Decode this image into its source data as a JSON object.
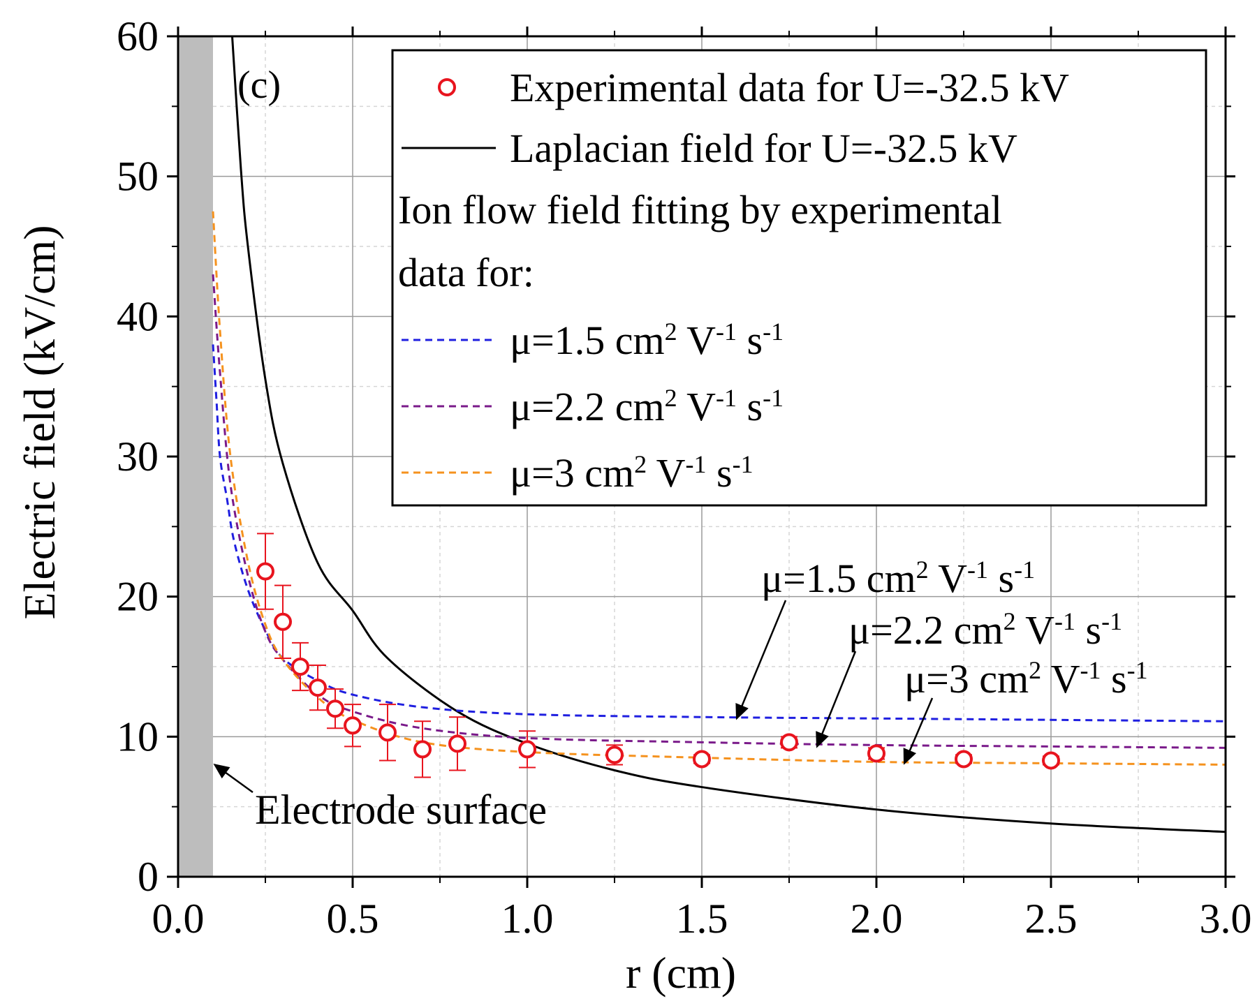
{
  "chart_data": {
    "type": "line",
    "panel_label": "(c)",
    "xlabel": "r (cm)",
    "ylabel": "Electric field (kV/cm)",
    "xlim": [
      0.0,
      3.0
    ],
    "ylim": [
      0,
      60
    ],
    "x_ticks": [
      "0.0",
      "0.5",
      "1.0",
      "1.5",
      "2.0",
      "2.5",
      "3.0"
    ],
    "y_ticks": [
      "0",
      "10",
      "20",
      "30",
      "40",
      "50",
      "60"
    ],
    "grid": true,
    "electrode_surface": {
      "x_range": [
        0.0,
        0.1
      ],
      "color": "#bdbdbd",
      "label": "Electrode surface"
    },
    "legend": {
      "position": "top-right",
      "entries": [
        {
          "key": "experimental",
          "label": "Experimental data for U=-32.5 kV"
        },
        {
          "key": "laplacian",
          "label": "Laplacian field for U=-32.5 kV"
        }
      ],
      "header_lines": [
        "Ion flow field fitting by experimental",
        "data for:"
      ],
      "mu_entries": [
        {
          "key": "mu15",
          "prefix": "μ=1.5 cm",
          "sup2": "2",
          "v": " V",
          "supv": "-1",
          "s": " s",
          "sups": "-1"
        },
        {
          "key": "mu22",
          "prefix": "μ=2.2 cm",
          "sup2": "2",
          "v": " V",
          "supv": "-1",
          "s": " s",
          "sups": "-1"
        },
        {
          "key": "mu3",
          "prefix": "μ=3 cm",
          "sup2": "2",
          "v": " V",
          "supv": "-1",
          "s": " s",
          "sups": "-1"
        }
      ]
    },
    "annotations": [
      {
        "key": "mu15",
        "prefix": "μ=1.5 cm",
        "sup2": "2",
        "v": " V",
        "supv": "-1",
        "s": " s",
        "sups": "-1",
        "target": [
          1.6,
          11.3
        ]
      },
      {
        "key": "mu22",
        "prefix": "μ=2.2 cm",
        "sup2": "2",
        "v": " V",
        "supv": "-1",
        "s": " s",
        "sups": "-1",
        "target": [
          1.83,
          9.3
        ]
      },
      {
        "key": "mu3",
        "prefix": "μ=3 cm",
        "sup2": "2",
        "v": " V",
        "supv": "-1",
        "s": " s",
        "sups": "-1",
        "target": [
          2.08,
          8.1
        ]
      }
    ],
    "series": [
      {
        "name": "Experimental data for U=-32.5 kV",
        "kind": "scatter",
        "color": "#e8141e",
        "x": [
          0.25,
          0.3,
          0.35,
          0.4,
          0.45,
          0.5,
          0.6,
          0.7,
          0.8,
          1.0,
          1.25,
          1.5,
          1.75,
          2.0,
          2.25,
          2.5
        ],
        "y": [
          21.8,
          18.2,
          15.0,
          13.5,
          12.0,
          10.8,
          10.3,
          9.1,
          9.5,
          9.1,
          8.7,
          8.4,
          9.6,
          8.8,
          8.4,
          8.3
        ],
        "err": [
          2.7,
          2.6,
          1.7,
          1.6,
          1.4,
          1.5,
          2.0,
          2.0,
          1.9,
          1.3,
          0.7,
          0.3,
          0.4,
          0.4,
          0.3,
          0.3
        ]
      },
      {
        "name": "Laplacian field for U=-32.5 kV",
        "kind": "line",
        "color": "#000000",
        "x": [
          0.155,
          0.18,
          0.2,
          0.25,
          0.3,
          0.4,
          0.5,
          0.6,
          0.8,
          1.0,
          1.25,
          1.5,
          2.0,
          2.5,
          3.0
        ],
        "y": [
          60.0,
          50.5,
          45.0,
          35.5,
          29.5,
          22.4,
          19.0,
          15.6,
          11.8,
          9.5,
          7.6,
          6.4,
          4.8,
          3.8,
          3.2
        ]
      },
      {
        "name": "μ=1.5 cm2 V-1 s-1",
        "kind": "dashed",
        "color": "#1f1fe0",
        "x": [
          0.1,
          0.11,
          0.12,
          0.14,
          0.16,
          0.2,
          0.25,
          0.3,
          0.4,
          0.5,
          0.7,
          1.0,
          1.5,
          2.0,
          2.5,
          3.0
        ],
        "y": [
          38.0,
          34.0,
          30.0,
          27.0,
          24.0,
          20.5,
          17.6,
          15.6,
          14.0,
          13.0,
          12.1,
          11.6,
          11.4,
          11.3,
          11.2,
          11.1
        ]
      },
      {
        "name": "μ=2.2 cm2 V-1 s-1",
        "kind": "dashed",
        "color": "#7a1a8a",
        "x": [
          0.1,
          0.12,
          0.15,
          0.2,
          0.25,
          0.3,
          0.4,
          0.5,
          0.7,
          1.0,
          1.5,
          2.0,
          2.5,
          3.0
        ],
        "y": [
          43.0,
          36.0,
          28.0,
          21.5,
          17.5,
          15.5,
          13.0,
          11.8,
          10.6,
          9.9,
          9.6,
          9.4,
          9.3,
          9.2
        ]
      },
      {
        "name": "μ=3 cm2 V-1 s-1",
        "kind": "dashed",
        "color": "#f5921e",
        "x": [
          0.1,
          0.12,
          0.15,
          0.2,
          0.25,
          0.3,
          0.4,
          0.5,
          0.7,
          1.0,
          1.5,
          2.0,
          2.5,
          3.0
        ],
        "y": [
          47.5,
          39.0,
          30.0,
          22.5,
          18.0,
          15.5,
          12.8,
          11.2,
          9.6,
          8.9,
          8.5,
          8.2,
          8.1,
          8.0
        ]
      }
    ]
  }
}
